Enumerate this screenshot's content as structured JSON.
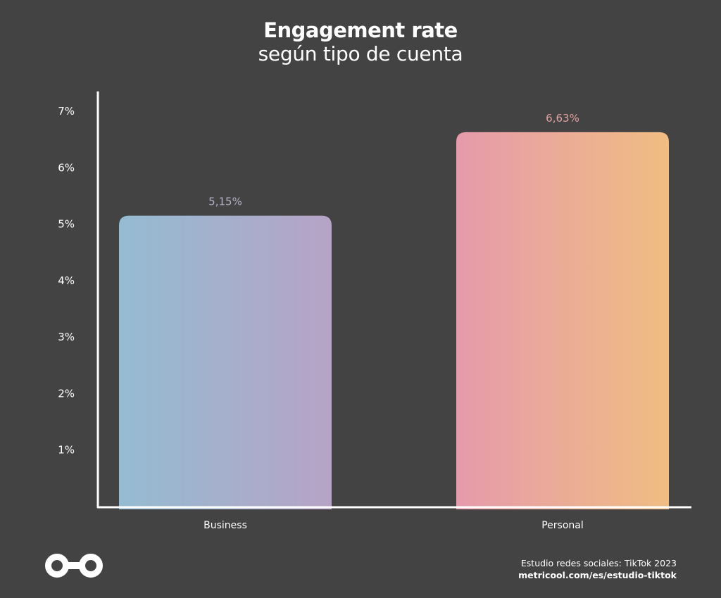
{
  "chart_data": {
    "type": "bar",
    "title": "Engagement rate",
    "subtitle": "según tipo de cuenta",
    "categories": [
      "Business",
      "Personal"
    ],
    "values": [
      5.15,
      6.63
    ],
    "data_labels": [
      "5,15%",
      "6,63%"
    ],
    "label_colors": [
      "#b3b1c6",
      "#e4a2a0"
    ],
    "gradients": [
      [
        "#94bcd2",
        "#b6a3c6"
      ],
      [
        "#e69aab",
        "#f0bd82"
      ]
    ],
    "yticks": [
      1,
      2,
      3,
      4,
      5,
      6,
      7
    ],
    "ytick_labels": [
      "1%",
      "2%",
      "3%",
      "4%",
      "5%",
      "6%",
      "7%"
    ],
    "ylim": [
      0,
      7.6
    ],
    "grid": false,
    "xlabel": "",
    "ylabel": ""
  },
  "footer": {
    "source": "Estudio redes sociales: TikTok 2023",
    "url": "metricool.com/es/estudio-tiktok",
    "logo_icon": "metricool-infinity-icon"
  }
}
